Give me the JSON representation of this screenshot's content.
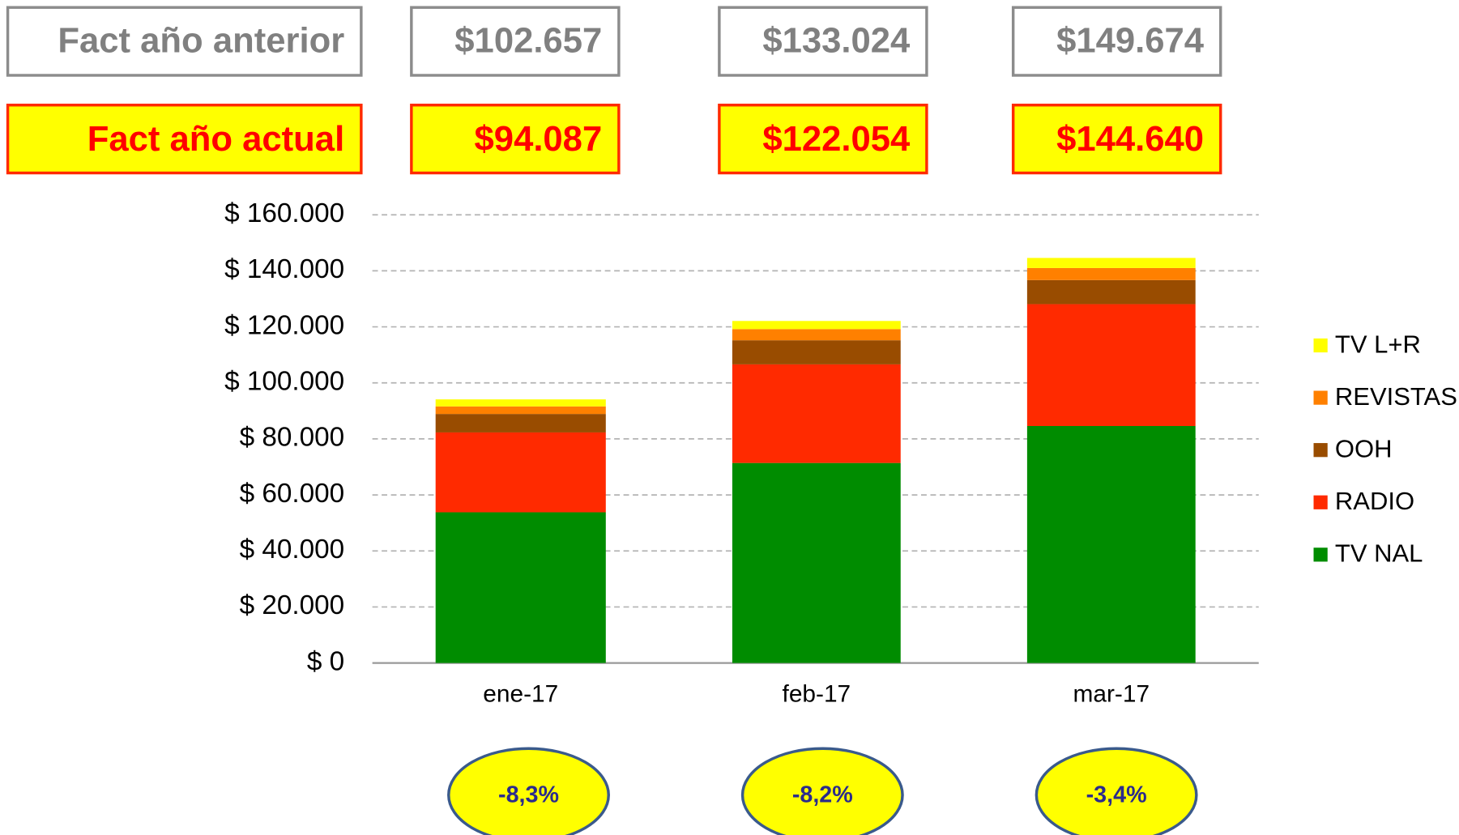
{
  "summary": {
    "previous_label": "Fact año anterior",
    "previous_values": [
      "$102.657",
      "$133.024",
      "$149.674"
    ],
    "current_label": "Fact año actual",
    "current_values": [
      "$94.087",
      "$122.054",
      "$144.640"
    ],
    "changes": [
      "-8,3%",
      "-8,2%",
      "-3,4%"
    ]
  },
  "chart_data": {
    "type": "stacked_bar",
    "categories": [
      "ene-17",
      "feb-17",
      "mar-17"
    ],
    "series": [
      {
        "name": "TV NAL",
        "color": "#008c00",
        "values": [
          53800,
          71400,
          84600
        ]
      },
      {
        "name": "RADIO",
        "color": "#ff2a00",
        "values": [
          28500,
          35200,
          43500
        ]
      },
      {
        "name": "OOH",
        "color": "#994c00",
        "values": [
          6600,
          8600,
          8600
        ]
      },
      {
        "name": "REVISTAS",
        "color": "#ff8000",
        "values": [
          2700,
          4000,
          4300
        ]
      },
      {
        "name": "TV L+R",
        "color": "#ffff00",
        "values": [
          2500,
          2900,
          3600
        ]
      }
    ],
    "ylim": [
      0,
      160000
    ],
    "yticks": [
      {
        "value": 0,
        "label": "$ 0"
      },
      {
        "value": 20000,
        "label": "$ 20.000"
      },
      {
        "value": 40000,
        "label": "$ 40.000"
      },
      {
        "value": 60000,
        "label": "$ 60.000"
      },
      {
        "value": 80000,
        "label": "$ 80.000"
      },
      {
        "value": 100000,
        "label": "$ 100.000"
      },
      {
        "value": 120000,
        "label": "$ 120.000"
      },
      {
        "value": 140000,
        "label": "$ 140.000"
      },
      {
        "value": 160000,
        "label": "$ 160.000"
      }
    ],
    "grid": true,
    "legend": "right"
  }
}
